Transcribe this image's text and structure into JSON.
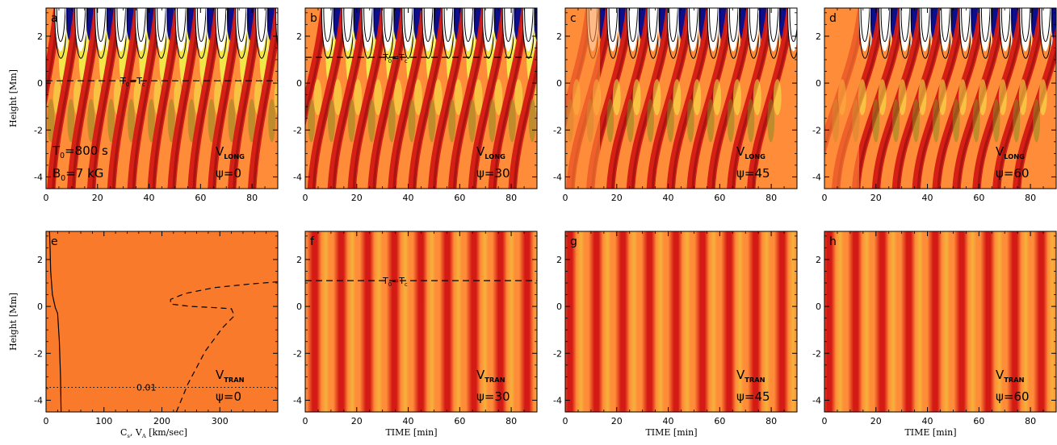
{
  "figure": {
    "panels": [
      {
        "id": "a",
        "label": "a",
        "row": 0,
        "col": 0,
        "kind": "long",
        "psi": "ψ=0",
        "var_main": "V",
        "var_sub": "LONG",
        "dashed": 0.1,
        "tc_main": "T",
        "tc_sub0": "0",
        "tc_eq": "=T",
        "tc_sub1": "c",
        "t0_main": "T",
        "t0_sub": "0",
        "t0_rest": "=800  s",
        "b0_main": "B",
        "b0_sub": "0",
        "b0_rest": "=7  kG"
      },
      {
        "id": "b",
        "label": "b",
        "row": 0,
        "col": 1,
        "kind": "long",
        "psi": "ψ=30",
        "var_main": "V",
        "var_sub": "LONG",
        "dashed": 1.1,
        "tc_main": "T",
        "tc_sub0": "0",
        "tc_eq": "=T",
        "tc_sub1": "c"
      },
      {
        "id": "c",
        "label": "c",
        "row": 0,
        "col": 2,
        "kind": "long",
        "psi": "ψ=45",
        "var_main": "V",
        "var_sub": "LONG"
      },
      {
        "id": "d",
        "label": "d",
        "row": 0,
        "col": 3,
        "kind": "long",
        "psi": "ψ=60",
        "var_main": "V",
        "var_sub": "LONG"
      },
      {
        "id": "e",
        "label": "e",
        "row": 1,
        "col": 0,
        "kind": "profile",
        "psi": "ψ=0",
        "var_main": "V",
        "var_sub": "TRAN",
        "dotted": -3.45,
        "dotted_label": "0.01"
      },
      {
        "id": "f",
        "label": "f",
        "row": 1,
        "col": 1,
        "kind": "tran",
        "psi": "ψ=30",
        "var_main": "V",
        "var_sub": "TRAN",
        "dashed": 1.1,
        "tc_main": "T",
        "tc_sub0": "0",
        "tc_eq": "=T",
        "tc_sub1": "c"
      },
      {
        "id": "g",
        "label": "g",
        "row": 1,
        "col": 2,
        "kind": "tran",
        "psi": "ψ=45",
        "var_main": "V",
        "var_sub": "TRAN"
      },
      {
        "id": "h",
        "label": "h",
        "row": 1,
        "col": 3,
        "kind": "tran",
        "psi": "ψ=60",
        "var_main": "V",
        "var_sub": "TRAN"
      }
    ],
    "y_label": "Height [Mm]",
    "y_range": [
      -4.5,
      3.2
    ],
    "y_ticks": [
      2,
      0,
      -2,
      -4
    ],
    "time_range": [
      0,
      90
    ],
    "time_ticks": [
      0,
      20,
      40,
      60,
      80
    ],
    "x_label_time": "TIME [min]",
    "speed_range": [
      0,
      400
    ],
    "speed_ticks": [
      0,
      100,
      200,
      300
    ],
    "x_label_speed_c": "C",
    "x_label_speed_s": "s",
    "x_label_speed_sep": ",  V",
    "x_label_speed_a": "A",
    "x_label_speed_rest": "  [km/sec]",
    "profile_solid": [
      [
        26,
        -4.5
      ],
      [
        25,
        -3.0
      ],
      [
        23,
        -1.5
      ],
      [
        20,
        -0.3
      ],
      [
        16,
        -0.05
      ],
      [
        11,
        0.5
      ],
      [
        8,
        1.5
      ],
      [
        7,
        2.5
      ],
      [
        6,
        3.2
      ]
    ],
    "profile_dashed": [
      [
        225,
        -4.5
      ],
      [
        245,
        -3.3
      ],
      [
        275,
        -1.9
      ],
      [
        305,
        -0.9
      ],
      [
        325,
        -0.4
      ],
      [
        320,
        -0.1
      ],
      [
        290,
        -0.05
      ],
      [
        250,
        0.0
      ],
      [
        215,
        0.1
      ],
      [
        215,
        0.3
      ],
      [
        240,
        0.55
      ],
      [
        290,
        0.8
      ],
      [
        350,
        0.95
      ],
      [
        400,
        1.05
      ]
    ]
  },
  "colors": {
    "background_flat": "#FA7A2C",
    "orange": "#FF8C38",
    "red": "#D41A14",
    "dark_red": "#850C0C",
    "yellow": "#F2F04A",
    "white": "#FFFFFF",
    "blue": "#0D0E8C",
    "olive": "#8C8A20"
  }
}
